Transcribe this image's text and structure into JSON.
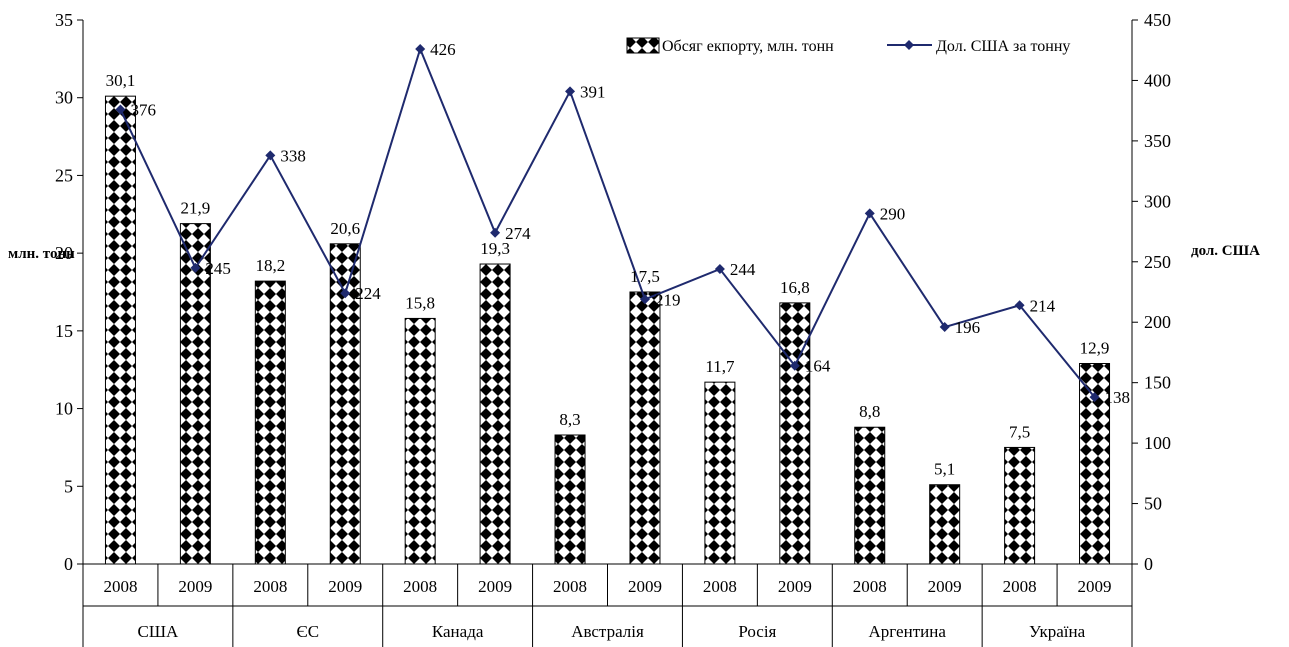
{
  "chart_data": {
    "type": "bar",
    "title": "",
    "ylabel": "млн. тонн",
    "y2label": "дол. США",
    "ylim": [
      0,
      35
    ],
    "y2lim": [
      0,
      450
    ],
    "yticks": [
      "0",
      "5",
      "10",
      "15",
      "20",
      "25",
      "30",
      "35"
    ],
    "y2ticks": [
      "0",
      "50",
      "100",
      "150",
      "200",
      "250",
      "300",
      "350",
      "400",
      "450"
    ],
    "categories": [
      "2008",
      "2009",
      "2008",
      "2009",
      "2008",
      "2009",
      "2008",
      "2009",
      "2008",
      "2009",
      "2008",
      "2009",
      "2008",
      "2009"
    ],
    "groups": [
      "США",
      "ЄС",
      "Канада",
      "Австралія",
      "Росія",
      "Аргентина",
      "Україна"
    ],
    "legend_position": "top-right",
    "grid": false,
    "series": [
      {
        "name": "Обсяг екпорту, млн. тонн",
        "type": "bar",
        "axis": "left",
        "values": [
          30.1,
          21.9,
          18.2,
          20.6,
          15.8,
          19.3,
          8.3,
          17.5,
          11.7,
          16.8,
          8.8,
          5.1,
          7.5,
          12.9
        ],
        "labels": [
          "30,1",
          "21,9",
          "18,2",
          "20,6",
          "15,8",
          "19,3",
          "8,3",
          "17,5",
          "11,7",
          "16,8",
          "8,8",
          "5,1",
          "7,5",
          "12,9"
        ]
      },
      {
        "name": "Дол. США за тонну",
        "type": "line",
        "axis": "right",
        "color": "#1f2a6e",
        "values": [
          376,
          245,
          338,
          224,
          426,
          274,
          391,
          219,
          244,
          164,
          290,
          196,
          214,
          138
        ],
        "labels": [
          "376",
          "245",
          "338",
          "224",
          "426",
          "274",
          "391",
          "219",
          "244",
          "164",
          "290",
          "196",
          "214",
          "138"
        ]
      }
    ]
  }
}
